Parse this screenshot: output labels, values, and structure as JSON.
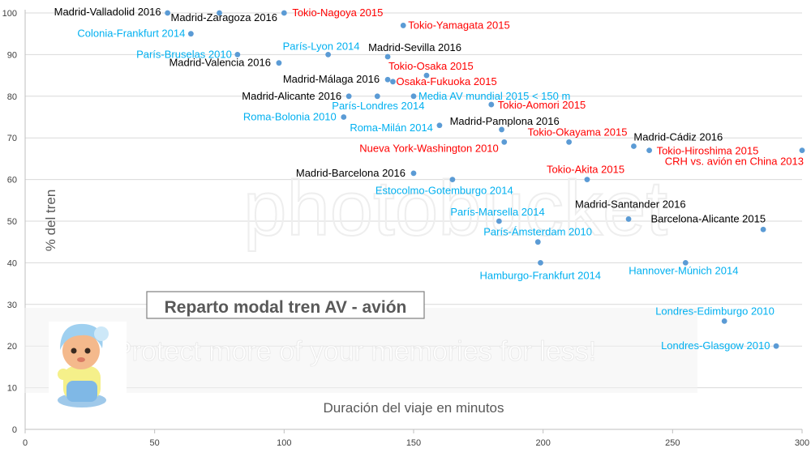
{
  "chart_data": {
    "type": "scatter",
    "title": "Reparto modal tren AV - avión",
    "xlabel": "Duración del viaje en minutos",
    "ylabel": "% del tren",
    "xlim": [
      0,
      300
    ],
    "ylim": [
      0,
      100
    ],
    "x_ticks": [
      "0",
      "50",
      "100",
      "150",
      "200",
      "250",
      "300"
    ],
    "y_ticks": [
      "0",
      "10",
      "20",
      "30",
      "40",
      "50",
      "60",
      "70",
      "80",
      "90",
      "100"
    ],
    "grid": "horizontal",
    "label_colors": {
      "spain": "#000000",
      "europe": "#00b0f0",
      "asia_us": "#ff0000"
    },
    "marker_color": "#5b9bd5",
    "points": [
      {
        "label": "Madrid-Valladolid 2016",
        "x": 55,
        "y": 100,
        "group": "spain"
      },
      {
        "label": "Madrid-Zaragoza 2016",
        "x": 75,
        "y": 100,
        "group": "spain"
      },
      {
        "label": "Tokio-Nagoya 2015",
        "x": 100,
        "y": 100,
        "group": "asia_us"
      },
      {
        "label": "Tokio-Yamagata 2015",
        "x": 146,
        "y": 97,
        "group": "asia_us"
      },
      {
        "label": "Colonia-Frankfurt 2014",
        "x": 64,
        "y": 95,
        "group": "europe"
      },
      {
        "label": "París-Bruselas 2010",
        "x": 82,
        "y": 90,
        "group": "europe"
      },
      {
        "label": "París-Lyon 2014",
        "x": 117,
        "y": 90,
        "group": "europe"
      },
      {
        "label": "Madrid-Sevilla 2016",
        "x": 140,
        "y": 89.5,
        "group": "spain"
      },
      {
        "label": "Madrid-Valencia 2016",
        "x": 98,
        "y": 88,
        "group": "spain"
      },
      {
        "label": "Tokio-Osaka 2015",
        "x": 155,
        "y": 85,
        "group": "asia_us"
      },
      {
        "label": "Madrid-Málaga 2016",
        "x": 140,
        "y": 84,
        "group": "spain"
      },
      {
        "label": "Osaka-Fukuoka 2015",
        "x": 142,
        "y": 83.5,
        "group": "asia_us"
      },
      {
        "label": "Madrid-Alicante 2016",
        "x": 125,
        "y": 80,
        "group": "spain"
      },
      {
        "label": "París-Londres 2014",
        "x": 136,
        "y": 80,
        "group": "europe"
      },
      {
        "label": "Media AV mundial 2015 < 150 m",
        "x": 150,
        "y": 80,
        "group": "europe"
      },
      {
        "label": "Tokio-Aomori 2015",
        "x": 180,
        "y": 78,
        "group": "asia_us"
      },
      {
        "label": "Roma-Bolonia 2010",
        "x": 123,
        "y": 75,
        "group": "europe"
      },
      {
        "label": "Roma-Milán 2014",
        "x": 160,
        "y": 73,
        "group": "europe"
      },
      {
        "label": "Madrid-Pamplona 2016",
        "x": 184,
        "y": 72,
        "group": "spain"
      },
      {
        "label": "Tokio-Okayama 2015",
        "x": 210,
        "y": 69,
        "group": "asia_us"
      },
      {
        "label": "Nueva York-Washington 2010",
        "x": 185,
        "y": 69,
        "group": "asia_us"
      },
      {
        "label": "Madrid-Cádiz 2016",
        "x": 235,
        "y": 68,
        "group": "spain"
      },
      {
        "label": "Tokio-Hiroshima 2015",
        "x": 241,
        "y": 67,
        "group": "asia_us"
      },
      {
        "label": "CRH vs. avión en China 2013",
        "x": 300,
        "y": 67,
        "group": "asia_us"
      },
      {
        "label": "Madrid-Barcelona 2016",
        "x": 150,
        "y": 61.5,
        "group": "spain"
      },
      {
        "label": "Tokio-Akita 2015",
        "x": 217,
        "y": 60,
        "group": "asia_us"
      },
      {
        "label": "Estocolmo-Gotemburgo 2014",
        "x": 165,
        "y": 60,
        "group": "europe"
      },
      {
        "label": "París-Marsella 2014",
        "x": 183,
        "y": 50,
        "group": "europe"
      },
      {
        "label": "Madrid-Santander 2016",
        "x": 233,
        "y": 50.5,
        "group": "spain"
      },
      {
        "label": "Barcelona-Alicante 2015",
        "x": 285,
        "y": 48,
        "group": "spain"
      },
      {
        "label": "París-Ámsterdam 2010",
        "x": 198,
        "y": 45,
        "group": "europe"
      },
      {
        "label": "Hamburgo-Frankfurt 2014",
        "x": 199,
        "y": 40,
        "group": "europe"
      },
      {
        "label": "Hannover-Múnich 2014",
        "x": 255,
        "y": 40,
        "group": "europe"
      },
      {
        "label": "Londres-Edimburgo 2010",
        "x": 270,
        "y": 26,
        "group": "europe"
      },
      {
        "label": "Londres-Glasgow 2010",
        "x": 290,
        "y": 20,
        "group": "europe"
      }
    ]
  },
  "watermark": {
    "logo_text": "photobucket",
    "band_text": "Protect more of your memories for less!"
  },
  "mascot_icon": "doll-figurine-icon"
}
